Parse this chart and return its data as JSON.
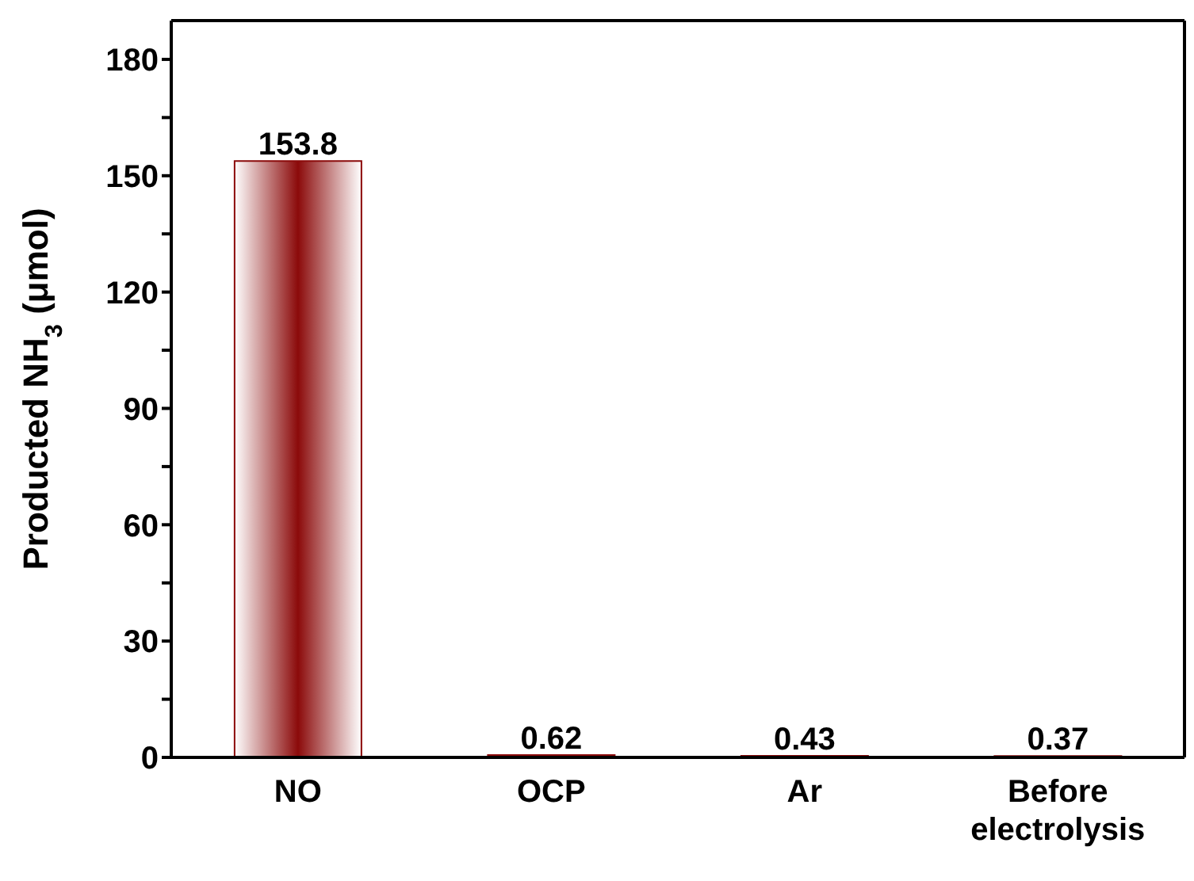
{
  "chart_data": {
    "type": "bar",
    "ylabel": "Producted NH$_{3}$ (μmol)",
    "categories": [
      "NO",
      "OCP",
      "Ar",
      "Before electrolysis"
    ],
    "values": [
      153.8,
      0.62,
      0.43,
      0.37
    ],
    "color": "#8b0a0a",
    "data_labels": true,
    "ylim": [
      0,
      190
    ],
    "yticks": [
      0,
      {
        "value": 15,
        "label": null
      },
      30,
      {
        "value": 45,
        "label": null
      },
      60,
      {
        "value": 75,
        "label": null
      },
      90,
      {
        "value": 105,
        "label": null
      },
      120,
      {
        "value": 135,
        "label": null
      },
      150,
      {
        "value": 165,
        "label": null
      },
      180
    ]
  }
}
